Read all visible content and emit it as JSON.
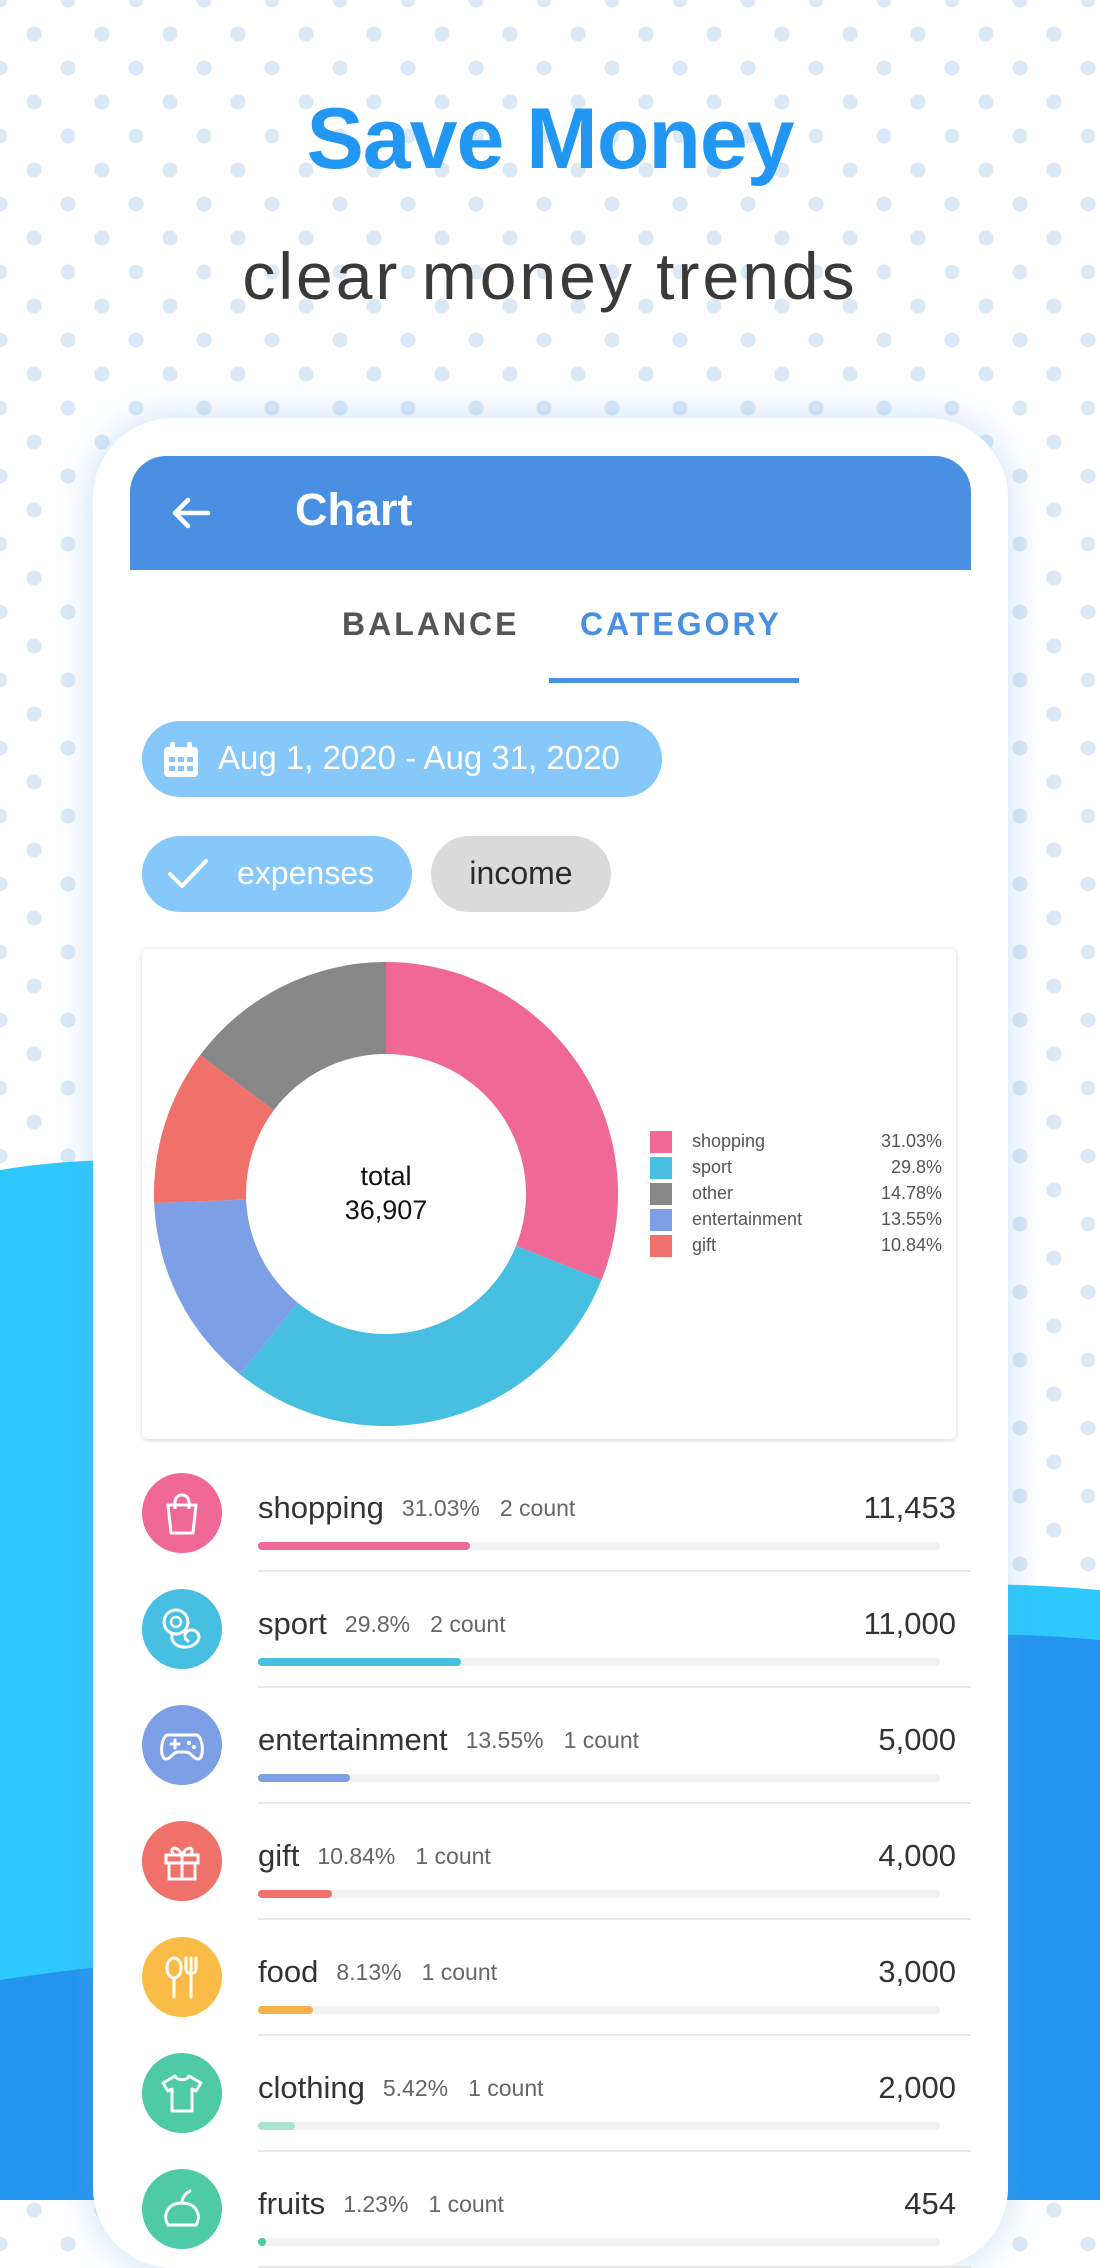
{
  "promo": {
    "headline": "Save Money",
    "subline": "clear money trends"
  },
  "colors": {
    "accent": "#4a90e2",
    "headline": "#2196f3",
    "chip_active": "#86c8fa",
    "chip_inactive": "#dadada",
    "wave_light": "#2ec8fc",
    "wave_dark": "#2394ef"
  },
  "appbar": {
    "back_icon": "arrow-left-icon",
    "title": "Chart"
  },
  "tabs": [
    {
      "label": "BALANCE",
      "active": false
    },
    {
      "label": "CATEGORY",
      "active": true
    }
  ],
  "date_range": {
    "icon": "calendar-icon",
    "label": "Aug 1, 2020 - Aug 31, 2020"
  },
  "filters": {
    "expenses": {
      "label": "expenses",
      "selected": true,
      "icon": "check-icon"
    },
    "income": {
      "label": "income",
      "selected": false
    }
  },
  "chart_data": {
    "type": "pie",
    "variant": "donut",
    "center_label": "total",
    "center_value": "36,907",
    "slices": [
      {
        "name": "shopping",
        "percent": 31.03,
        "label": "31.03%",
        "color": "#f06895"
      },
      {
        "name": "sport",
        "percent": 29.8,
        "label": "29.8%",
        "color": "#46bfe0"
      },
      {
        "name": "entertainment",
        "percent": 13.55,
        "label": "13.55%",
        "color": "#7c9fe6"
      },
      {
        "name": "gift",
        "percent": 10.84,
        "label": "10.84%",
        "color": "#f0706a"
      },
      {
        "name": "other",
        "percent": 14.78,
        "label": "14.78%",
        "color": "#888888"
      }
    ],
    "legend": [
      {
        "name": "shopping",
        "label": "31.03%",
        "color": "#f06895"
      },
      {
        "name": "sport",
        "label": "29.8%",
        "color": "#46bfe0"
      },
      {
        "name": "other",
        "label": "14.78%",
        "color": "#888888"
      },
      {
        "name": "entertainment",
        "label": "13.55%",
        "color": "#7c9fe6"
      },
      {
        "name": "gift",
        "label": "10.84%",
        "color": "#f0706a"
      }
    ],
    "legend_position": "right"
  },
  "categories": [
    {
      "name": "shopping",
      "percent": "31.03%",
      "count": "2 count",
      "amount": "11,453",
      "fraction": 0.3103,
      "color": "#f06895",
      "bar_color": "#f06895",
      "icon": "shopping-bag-icon"
    },
    {
      "name": "sport",
      "percent": "29.8%",
      "count": "2 count",
      "amount": "11,000",
      "fraction": 0.298,
      "color": "#46bfe0",
      "bar_color": "#46bfe0",
      "icon": "sport-icon"
    },
    {
      "name": "entertainment",
      "percent": "13.55%",
      "count": "1 count",
      "amount": "5,000",
      "fraction": 0.1355,
      "color": "#7c9fe6",
      "bar_color": "#7c9fe6",
      "icon": "gamepad-icon"
    },
    {
      "name": "gift",
      "percent": "10.84%",
      "count": "1 count",
      "amount": "4,000",
      "fraction": 0.1084,
      "color": "#f0706a",
      "bar_color": "#f0706a",
      "icon": "gift-icon"
    },
    {
      "name": "food",
      "percent": "8.13%",
      "count": "1 count",
      "amount": "3,000",
      "fraction": 0.0813,
      "color": "#fbbc47",
      "bar_color": "#f5b14a",
      "icon": "utensils-icon"
    },
    {
      "name": "clothing",
      "percent": "5.42%",
      "count": "1 count",
      "amount": "2,000",
      "fraction": 0.0542,
      "color": "#4ecba5",
      "bar_color": "#a8e6d2",
      "icon": "tshirt-icon"
    },
    {
      "name": "fruits",
      "percent": "1.23%",
      "count": "1 count",
      "amount": "454",
      "fraction": 0.0123,
      "color": "#4ecba5",
      "bar_color": "#4ecba5",
      "icon": "fruit-icon"
    }
  ]
}
